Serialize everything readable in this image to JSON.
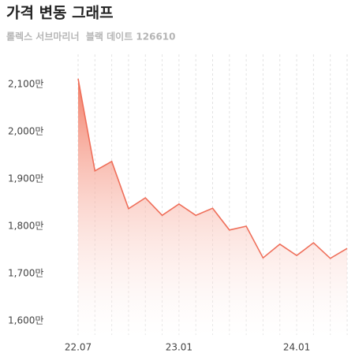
{
  "header": {
    "title": "가격 변동 그래프",
    "subtitle": "롤렉스 서브마리너  블랙 데이트 126610"
  },
  "chart_data": {
    "type": "area",
    "categories": [
      "22.07",
      null,
      null,
      null,
      null,
      null,
      "23.01",
      null,
      null,
      null,
      null,
      null,
      null,
      "24.01",
      null,
      null,
      null
    ],
    "values": [
      2112,
      1917,
      1937,
      1837,
      1860,
      1823,
      1847,
      1823,
      1838,
      1792,
      1800,
      1733,
      1762,
      1738,
      1765,
      1732,
      1753
    ],
    "color": "#ef6f5a",
    "ylim": [
      1570,
      2180
    ],
    "yticks": [
      {
        "value": 1600,
        "label": "1,600만"
      },
      {
        "value": 1700,
        "label": "1,700만"
      },
      {
        "value": 1800,
        "label": "1,800만"
      },
      {
        "value": 1900,
        "label": "1,900만"
      },
      {
        "value": 2000,
        "label": "2,000만"
      },
      {
        "value": 2100,
        "label": "2,100만"
      }
    ],
    "grid": true
  }
}
